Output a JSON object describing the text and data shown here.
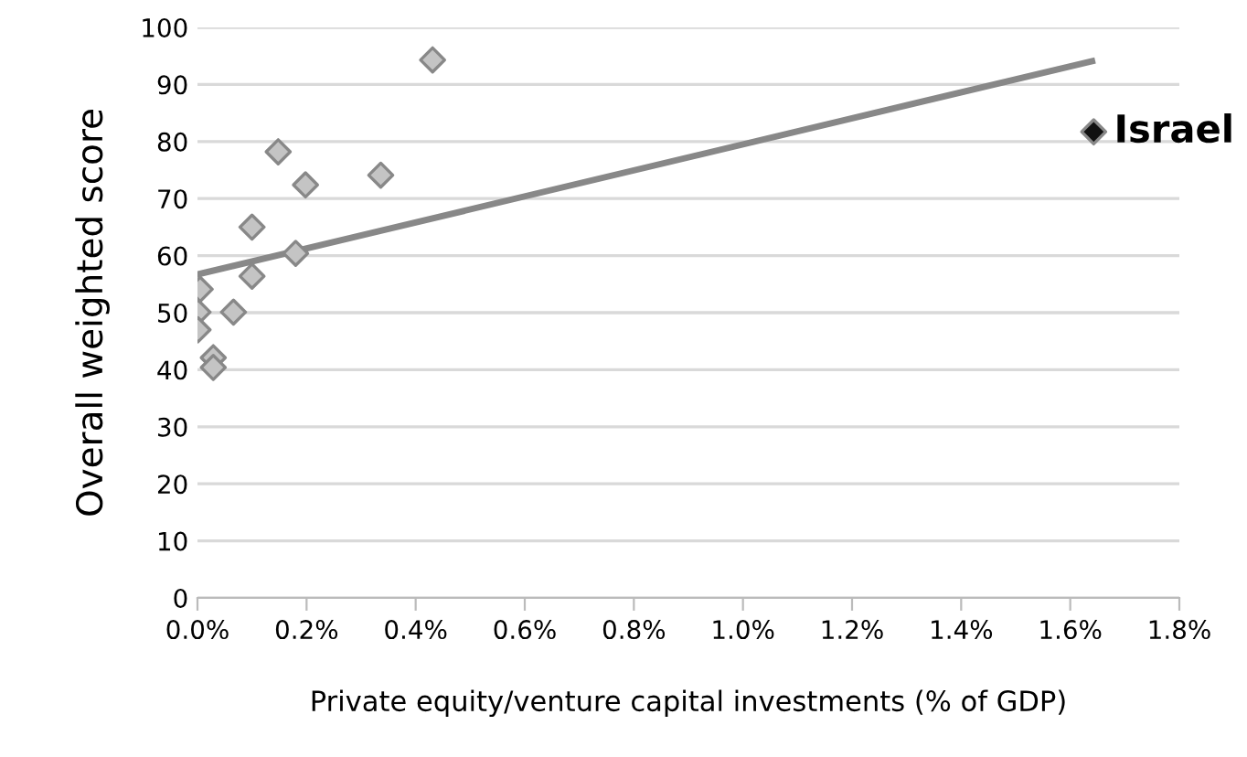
{
  "chart_data": {
    "type": "scatter",
    "xlabel": "Private equity/venture capital investments (% of GDP)",
    "ylabel": "Overall weighted score",
    "series": [
      {
        "x": [
          0.005,
          0.001,
          0.001,
          0.029,
          0.029,
          0.066,
          0.1,
          0.1,
          0.148,
          0.198,
          0.18,
          0.336,
          0.431,
          1.643
        ],
        "values": [
          54.1,
          50.1,
          47.0,
          42.1,
          40.4,
          50.1,
          56.4,
          65.0,
          78.2,
          72.4,
          60.4,
          74.1,
          94.3,
          81.7
        ],
        "colors": [
          "#c4c4c4",
          "#c4c4c4",
          "#c4c4c4",
          "#c4c4c4",
          "#c4c4c4",
          "#c4c4c4",
          "#c4c4c4",
          "#c4c4c4",
          "#c4c4c4",
          "#c4c4c4",
          "#c4c4c4",
          "#c4c4c4",
          "#c4c4c4",
          "#111111"
        ],
        "marker": "diamond"
      },
      {
        "type": "line",
        "x": [
          0,
          1.64
        ],
        "values": [
          56.7,
          94.1
        ],
        "color": "#888888",
        "line_style": "solid",
        "marker": "none"
      }
    ],
    "annotations": [
      {
        "text": "Israel",
        "x": 1.643,
        "y": 81.7
      }
    ],
    "xlim": [
      0,
      1.8
    ],
    "xticks": [
      {
        "value": 0,
        "label": "0.0%"
      },
      {
        "value": 0.2,
        "label": "0.2%"
      },
      {
        "value": 0.4,
        "label": "0.4%"
      },
      {
        "value": 0.6,
        "label": "0.6%"
      },
      {
        "value": 0.8,
        "label": "0.8%"
      },
      {
        "value": 1.0,
        "label": "1.0%"
      },
      {
        "value": 1.2,
        "label": "1.2%"
      },
      {
        "value": 1.4,
        "label": "1.4%"
      },
      {
        "value": 1.6,
        "label": "1.6%"
      },
      {
        "value": 1.8,
        "label": "1.8%"
      }
    ],
    "ylim": [
      0,
      100
    ],
    "yticks": [
      0,
      10,
      20,
      30,
      40,
      50,
      60,
      70,
      80,
      90,
      100
    ],
    "grid": "y",
    "legend": false
  }
}
